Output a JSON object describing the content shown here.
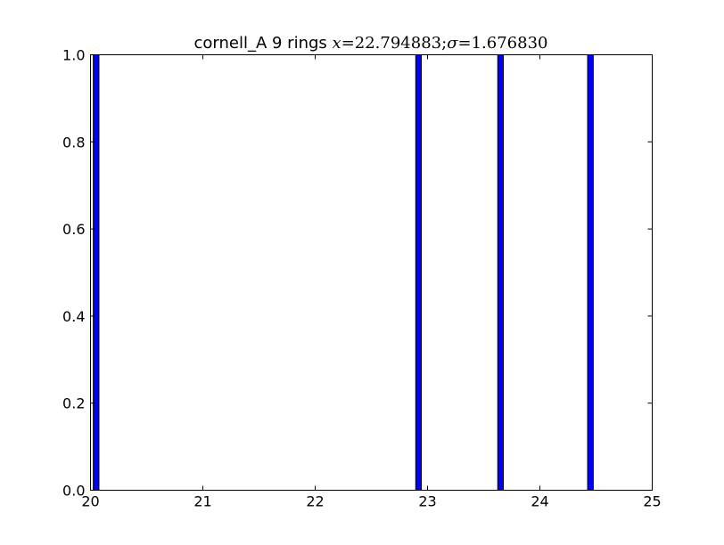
{
  "chart_data": {
    "type": "bar",
    "title_text": "cornell_A  9 rings ",
    "title_math": {
      "x_symbol": "x",
      "equals": "=",
      "x_value": "22.794883",
      "separator": ";",
      "sigma_symbol": "σ",
      "sigma_value": "1.676830"
    },
    "xlabel": "",
    "ylabel": "",
    "xlim": [
      20,
      25
    ],
    "ylim": [
      0,
      1.0
    ],
    "bar_width": 0.05,
    "x": [
      20.05,
      22.92,
      23.65,
      24.45
    ],
    "values": [
      1,
      1,
      1,
      1
    ],
    "x_ticks": [
      "20",
      "21",
      "22",
      "23",
      "24",
      "25"
    ],
    "y_ticks": [
      "0.0",
      "0.2",
      "0.4",
      "0.6",
      "0.8",
      "1.0"
    ],
    "bar_color": "#0000ff",
    "bar_edge_color": "#000000",
    "grid": false
  }
}
